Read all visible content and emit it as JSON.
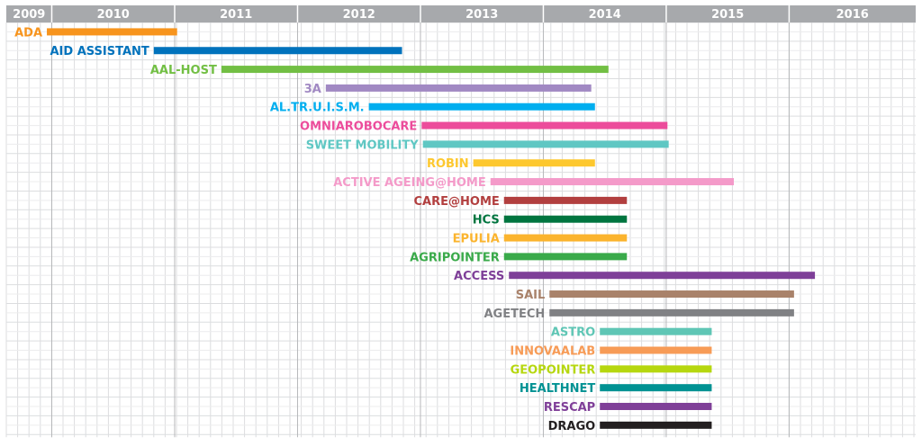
{
  "chart_data": {
    "type": "gantt",
    "title": "",
    "xlabel": "",
    "ylabel": "",
    "x_range": [
      2009.0,
      2016.4
    ],
    "grid": true,
    "header_color": "#a7a9ac",
    "ticks": [
      {
        "label": "2009",
        "start": 2009.0,
        "end": 2009.37
      },
      {
        "label": "2010",
        "start": 2009.37,
        "end": 2010.37
      },
      {
        "label": "2011",
        "start": 2010.37,
        "end": 2011.37
      },
      {
        "label": "2012",
        "start": 2011.37,
        "end": 2012.37
      },
      {
        "label": "2013",
        "start": 2012.37,
        "end": 2013.37
      },
      {
        "label": "2014",
        "start": 2013.37,
        "end": 2014.37
      },
      {
        "label": "2015",
        "start": 2014.37,
        "end": 2015.37
      },
      {
        "label": "2016",
        "start": 2015.37,
        "end": 2016.4
      }
    ],
    "tasks": [
      {
        "name": "ADA",
        "start": 2009.33,
        "end": 2010.39,
        "color": "#f7941d"
      },
      {
        "name": "AID ASSISTANT",
        "start": 2010.2,
        "end": 2012.22,
        "color": "#0072bc"
      },
      {
        "name": "AAL-HOST",
        "start": 2010.75,
        "end": 2013.9,
        "color": "#72bf44"
      },
      {
        "name": "3A",
        "start": 2011.6,
        "end": 2013.76,
        "color": "#a189c3"
      },
      {
        "name": "AL.TR.U.I.S.M.",
        "start": 2011.95,
        "end": 2013.79,
        "color": "#00aeef"
      },
      {
        "name": "OMNIAROBOCARE",
        "start": 2012.38,
        "end": 2014.38,
        "color": "#ec4c9b"
      },
      {
        "name": "SWEET MOBILITY",
        "start": 2012.39,
        "end": 2014.39,
        "color": "#5fc7c3"
      },
      {
        "name": "ROBIN",
        "start": 2012.8,
        "end": 2013.79,
        "color": "#fdc82f"
      },
      {
        "name": "ACTIVE AGEING@HOME",
        "start": 2012.94,
        "end": 2014.92,
        "color": "#f49ac9"
      },
      {
        "name": "CARE@HOME",
        "start": 2013.05,
        "end": 2014.05,
        "color": "#b23f3f"
      },
      {
        "name": "HCS",
        "start": 2013.05,
        "end": 2014.05,
        "color": "#00753f"
      },
      {
        "name": "EPULIA",
        "start": 2013.05,
        "end": 2014.05,
        "color": "#fbb42e"
      },
      {
        "name": "AGRIPOINTER",
        "start": 2013.05,
        "end": 2014.05,
        "color": "#3aaa4a"
      },
      {
        "name": "ACCESS",
        "start": 2013.09,
        "end": 2015.58,
        "color": "#7e3f98"
      },
      {
        "name": "SAIL",
        "start": 2013.42,
        "end": 2015.41,
        "color": "#a9826a"
      },
      {
        "name": "AGETECH",
        "start": 2013.42,
        "end": 2015.41,
        "color": "#808184"
      },
      {
        "name": "ASTRO",
        "start": 2013.83,
        "end": 2014.74,
        "color": "#5fc6b5"
      },
      {
        "name": "INNOVAALAB",
        "start": 2013.83,
        "end": 2014.74,
        "color": "#f79b56"
      },
      {
        "name": "GEOPOINTER",
        "start": 2013.83,
        "end": 2014.74,
        "color": "#b6d70f"
      },
      {
        "name": "HEALTHNET",
        "start": 2013.83,
        "end": 2014.74,
        "color": "#009293"
      },
      {
        "name": "RESCAP",
        "start": 2013.83,
        "end": 2014.74,
        "color": "#7f3f98"
      },
      {
        "name": "DRAGO",
        "start": 2013.83,
        "end": 2014.74,
        "color": "#231f20"
      }
    ]
  }
}
